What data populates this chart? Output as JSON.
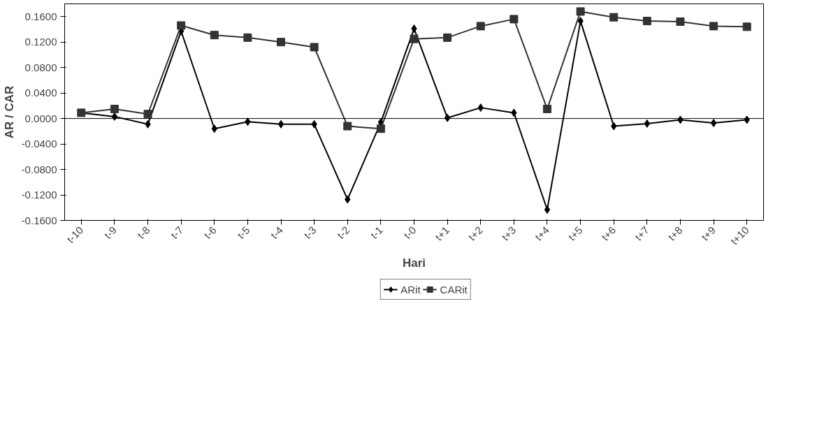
{
  "chart_data": {
    "type": "line",
    "xlabel": "Hari",
    "ylabel": "AR / CAR",
    "categories": [
      "t-10",
      "t-9",
      "t-8",
      "t-7",
      "t-6",
      "t-5",
      "t-4",
      "t-3",
      "t-2",
      "t-1",
      "t-0",
      "t+1",
      "t+2",
      "t+3",
      "t+4",
      "t+5",
      "t+6",
      "t+7",
      "t+8",
      "t+9",
      "t+10"
    ],
    "series": [
      {
        "name": "ARit",
        "color": "#000000",
        "marker": "diamond",
        "values": [
          0.009,
          0.003,
          -0.009,
          0.137,
          -0.016,
          -0.005,
          -0.009,
          -0.009,
          -0.127,
          -0.006,
          0.141,
          0.001,
          0.017,
          0.009,
          -0.143,
          0.153,
          -0.012,
          -0.008,
          -0.002,
          -0.007,
          -0.002
        ]
      },
      {
        "name": "CARit",
        "color": "#333333",
        "marker": "square",
        "values": [
          0.009,
          0.015,
          0.007,
          0.146,
          0.131,
          0.127,
          0.12,
          0.112,
          -0.012,
          -0.016,
          0.125,
          0.127,
          0.145,
          0.156,
          0.015,
          0.168,
          0.159,
          0.153,
          0.152,
          0.145,
          0.144
        ]
      }
    ],
    "ylim": [
      -0.16,
      0.18
    ],
    "yticks": [
      {
        "value": -0.16,
        "label": "-0.1600"
      },
      {
        "value": -0.12,
        "label": "-0.1200"
      },
      {
        "value": -0.08,
        "label": "-0.0800"
      },
      {
        "value": -0.04,
        "label": "-0.0400"
      },
      {
        "value": 0,
        "label": "0.0000"
      },
      {
        "value": 0.04,
        "label": "0.0400"
      },
      {
        "value": 0.08,
        "label": "0.0800"
      },
      {
        "value": 0.12,
        "label": "0.1200"
      },
      {
        "value": 0.16,
        "label": "0.1600"
      }
    ],
    "ref_lines": [
      {
        "axis": "y",
        "value": 0,
        "color": "#000000",
        "line_style": "solid"
      }
    ],
    "grid": false,
    "legend": "bottom",
    "line_style": "solid"
  }
}
